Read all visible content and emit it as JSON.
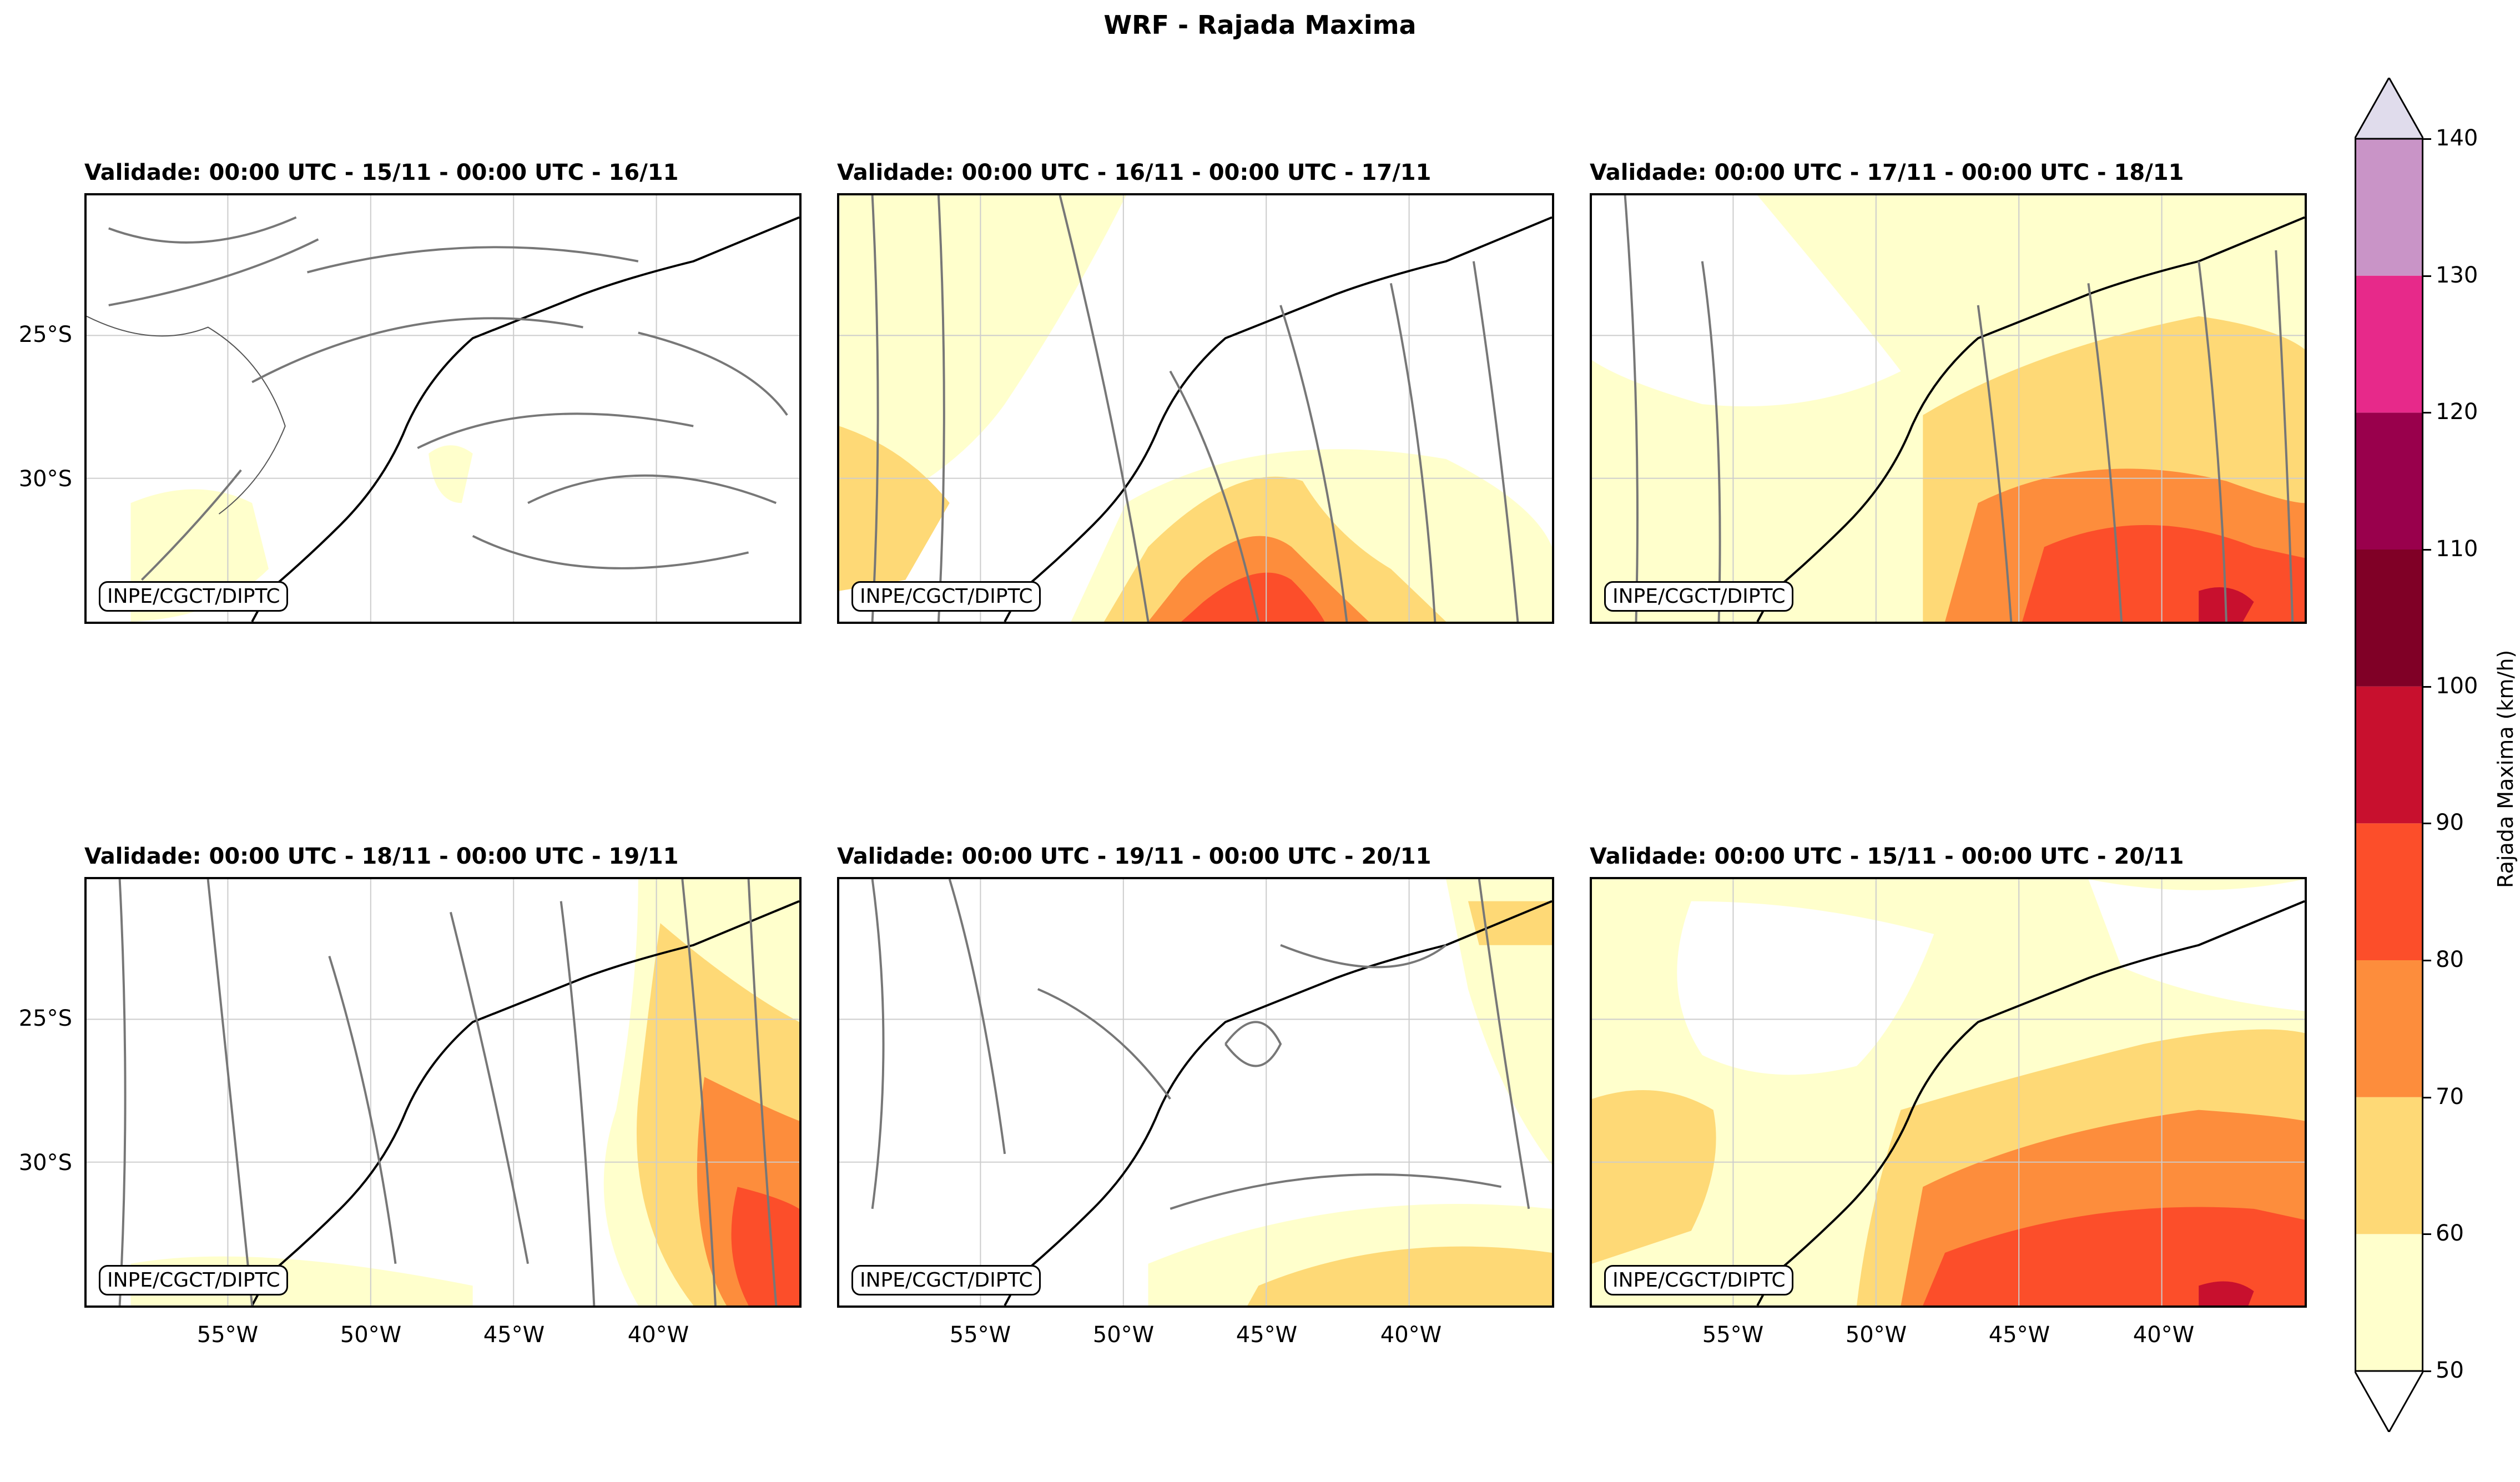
{
  "figure": {
    "title": "WRF - Rajada Maxima"
  },
  "credit": "INPE/CGCT/DIPTC",
  "panels": [
    {
      "title": "Validade: 00:00 UTC - 15/11 - 00:00 UTC - 16/11"
    },
    {
      "title": "Validade: 00:00 UTC - 16/11 - 00:00 UTC - 17/11"
    },
    {
      "title": "Validade: 00:00 UTC - 17/11 - 00:00 UTC - 18/11"
    },
    {
      "title": "Validade: 00:00 UTC - 18/11 - 00:00 UTC - 19/11"
    },
    {
      "title": "Validade: 00:00 UTC - 19/11 - 00:00 UTC - 20/11"
    },
    {
      "title": "Validade: 00:00 UTC - 15/11 - 00:00 UTC - 20/11"
    }
  ],
  "axes": {
    "lat_labels": [
      "25°S",
      "30°S"
    ],
    "lon_labels": [
      "55°W",
      "50°W",
      "45°W",
      "40°W"
    ]
  },
  "colorbar": {
    "label": "Rajada Maxima (km/h)",
    "ticks": [
      "50",
      "60",
      "70",
      "80",
      "90",
      "100",
      "110",
      "120",
      "130",
      "140"
    ],
    "colors": [
      "#ffffcc",
      "#fed976",
      "#fd8d3c",
      "#fc4e2a",
      "#c8102e",
      "#800026",
      "#99004c",
      "#e7298a",
      "#c994c7",
      "#e0dcec"
    ]
  }
}
